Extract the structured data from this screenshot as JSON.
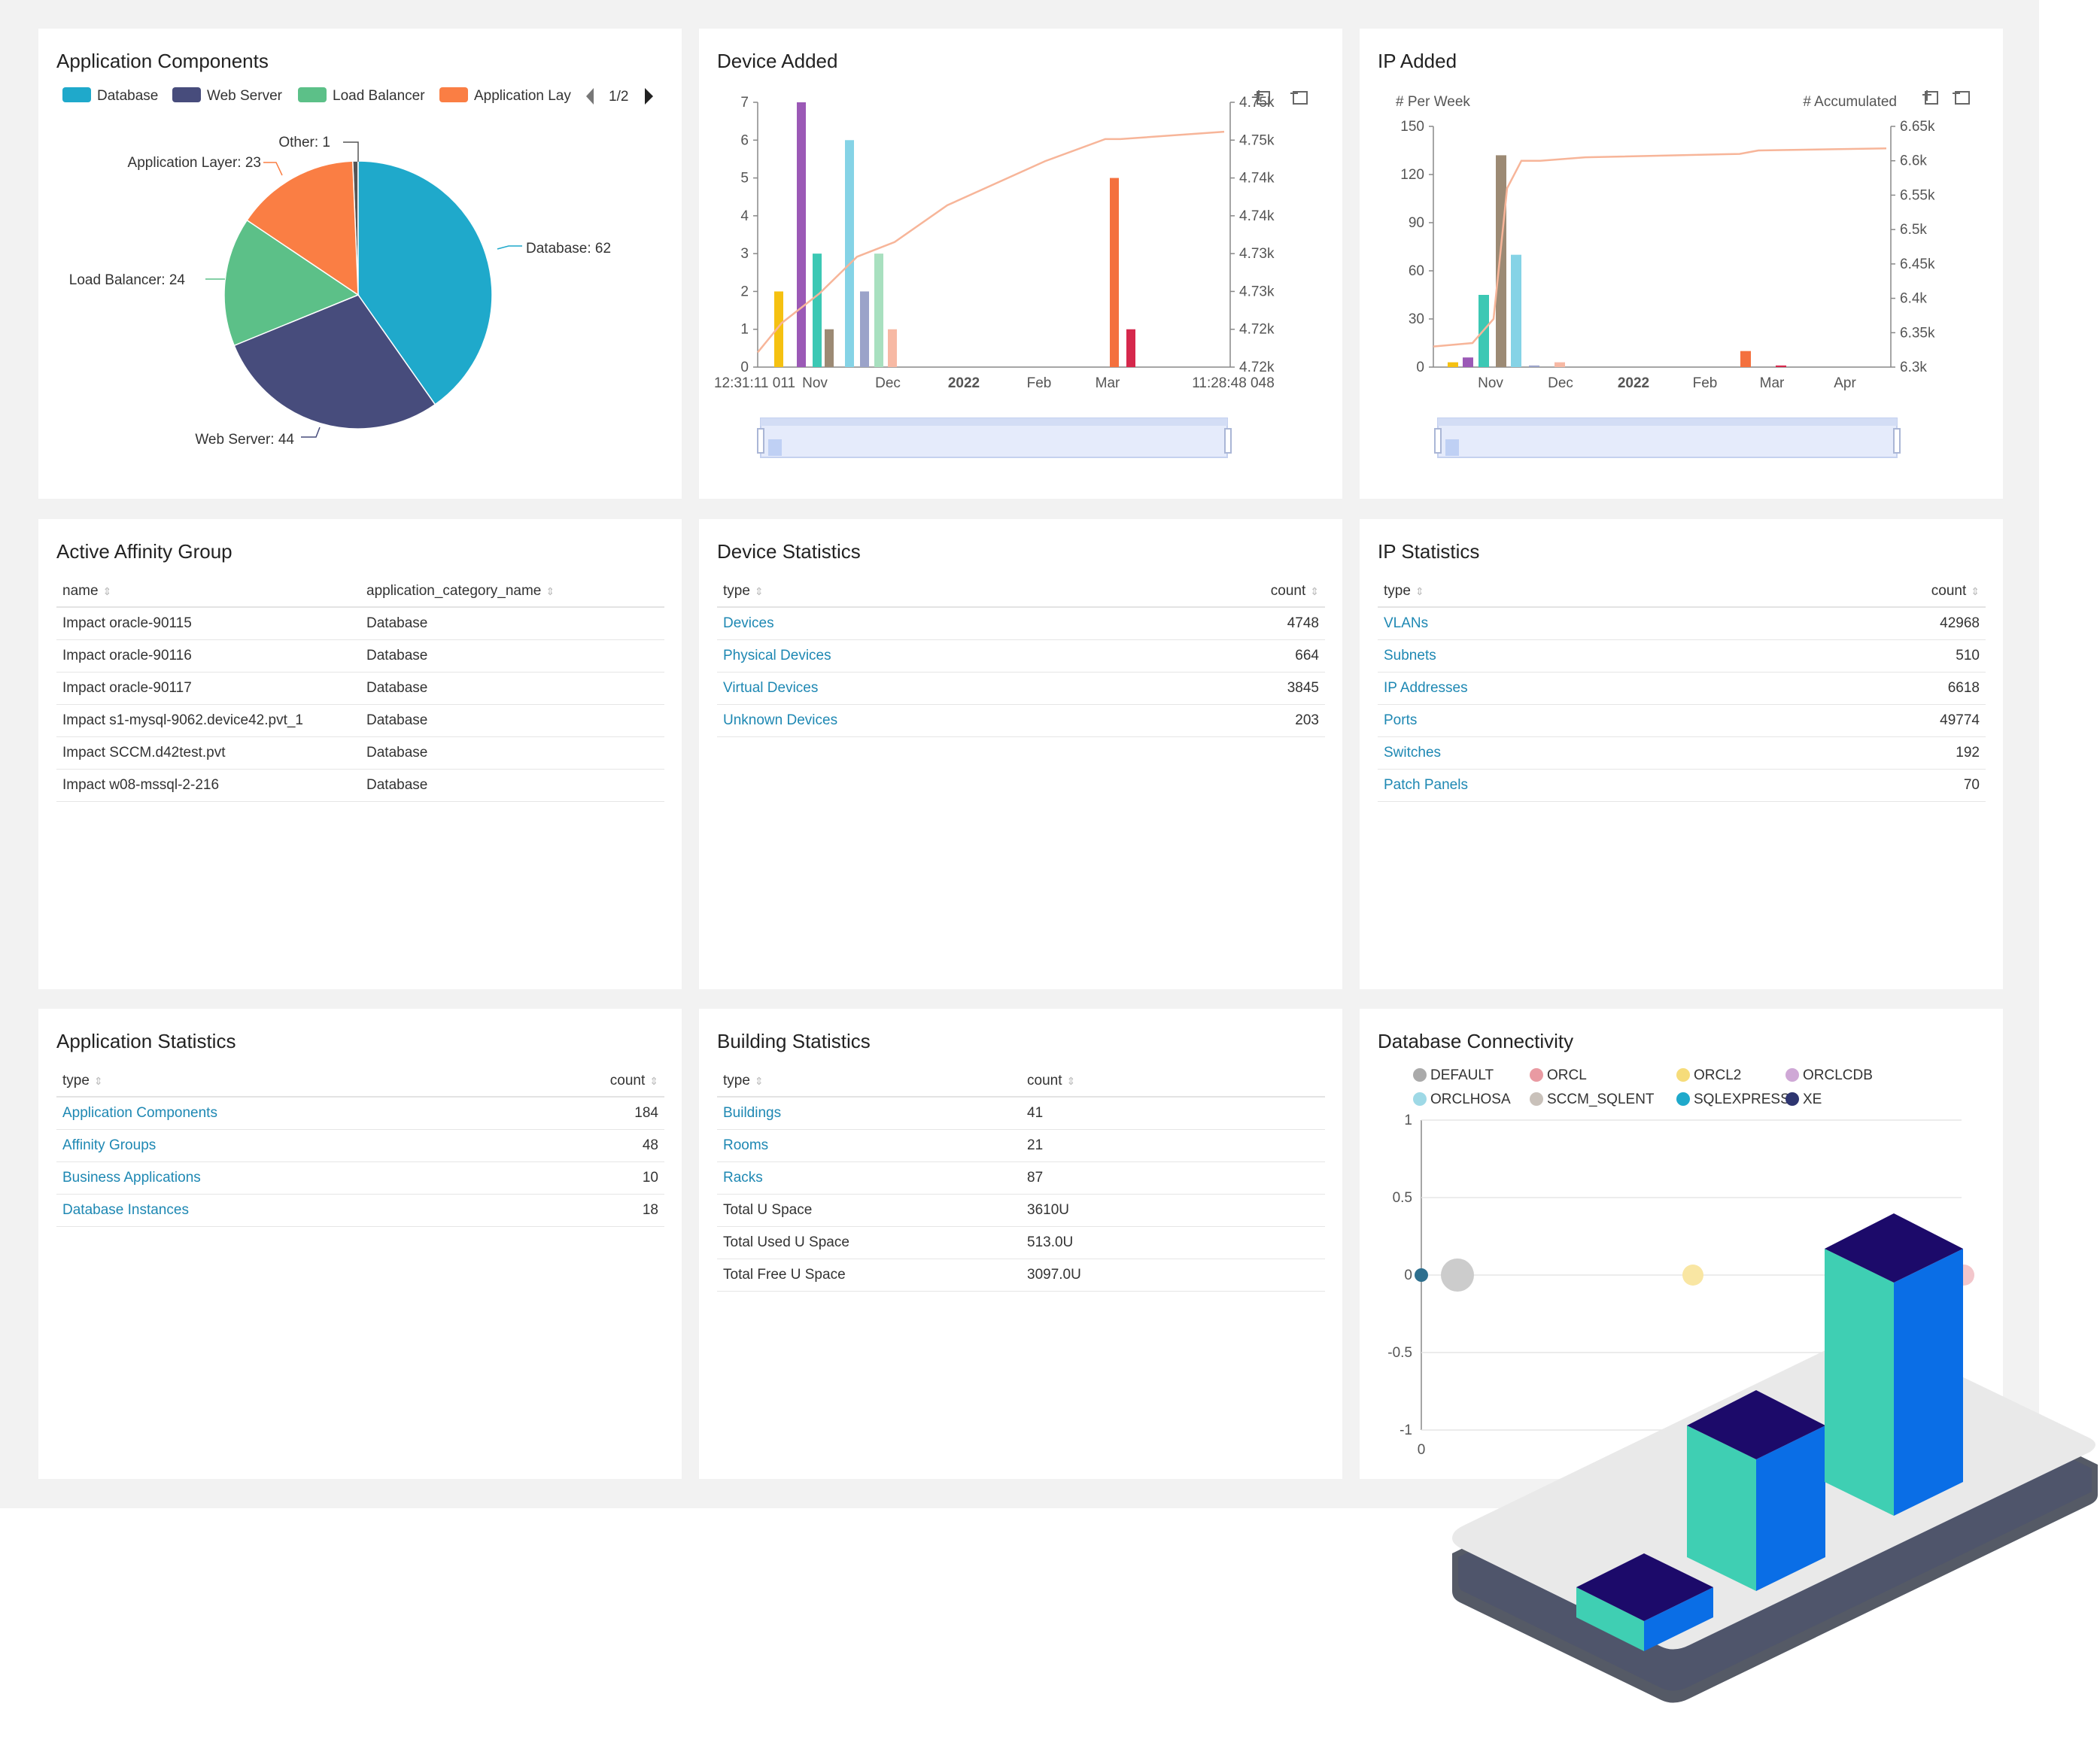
{
  "app_components": {
    "title": "Application Components",
    "legend": [
      {
        "label": "Database",
        "color": "#1fa9cb"
      },
      {
        "label": "Web Server",
        "color": "#474c7c"
      },
      {
        "label": "Load Balancer",
        "color": "#5cc088"
      },
      {
        "label": "Application Lay",
        "color": "#fa7e44"
      }
    ],
    "pager": "1/2",
    "pie_labels": [
      "Database: 62",
      "Web Server: 44",
      "Load Balancer: 24",
      "Application Layer: 23",
      "Other: 1"
    ]
  },
  "device_added": {
    "title": "Device Added",
    "x_start": "12:31:11 011",
    "x_end": "11:28:48 048",
    "x_ticks": [
      "Nov",
      "Dec",
      "2022",
      "Feb",
      "Mar"
    ],
    "y_left": [
      "0",
      "1",
      "2",
      "3",
      "4",
      "5",
      "6",
      "7"
    ],
    "y_right": [
      "4.72k",
      "4.72k",
      "4.73k",
      "4.73k",
      "4.74k",
      "4.74k",
      "4.75k",
      "4.75k"
    ]
  },
  "ip_added": {
    "title": "IP Added",
    "left_axis_name": "# Per Week",
    "right_axis_name": "# Accumulated",
    "x_ticks": [
      "Nov",
      "Dec",
      "2022",
      "Feb",
      "Mar",
      "Apr"
    ],
    "y_left": [
      "0",
      "30",
      "60",
      "90",
      "120",
      "150"
    ],
    "y_right": [
      "6.3k",
      "6.35k",
      "6.4k",
      "6.45k",
      "6.5k",
      "6.55k",
      "6.6k",
      "6.65k"
    ]
  },
  "affinity": {
    "title": "Active Affinity Group",
    "col_name": "name",
    "col_cat": "application_category_name",
    "rows": [
      {
        "name": "Impact oracle-90115",
        "cat": "Database"
      },
      {
        "name": "Impact oracle-90116",
        "cat": "Database"
      },
      {
        "name": "Impact oracle-90117",
        "cat": "Database"
      },
      {
        "name": "Impact s1-mysql-9062.device42.pvt_1",
        "cat": "Database"
      },
      {
        "name": "Impact SCCM.d42test.pvt",
        "cat": "Database"
      },
      {
        "name": "Impact w08-mssql-2-216",
        "cat": "Database"
      }
    ]
  },
  "device_stats": {
    "title": "Device Statistics",
    "col_type": "type",
    "col_count": "count",
    "rows": [
      {
        "type": "Devices",
        "count": "4748"
      },
      {
        "type": "Physical Devices",
        "count": "664"
      },
      {
        "type": "Virtual Devices",
        "count": "3845"
      },
      {
        "type": "Unknown Devices",
        "count": "203"
      }
    ]
  },
  "ip_stats": {
    "title": "IP Statistics",
    "col_type": "type",
    "col_count": "count",
    "rows": [
      {
        "type": "VLANs",
        "count": "42968"
      },
      {
        "type": "Subnets",
        "count": "510"
      },
      {
        "type": "IP Addresses",
        "count": "6618"
      },
      {
        "type": "Ports",
        "count": "49774"
      },
      {
        "type": "Switches",
        "count": "192"
      },
      {
        "type": "Patch Panels",
        "count": "70"
      }
    ]
  },
  "app_stats": {
    "title": "Application Statistics",
    "col_type": "type",
    "col_count": "count",
    "rows": [
      {
        "type": "Application Components",
        "count": "184"
      },
      {
        "type": "Affinity Groups",
        "count": "48"
      },
      {
        "type": "Business Applications",
        "count": "10"
      },
      {
        "type": "Database Instances",
        "count": "18"
      }
    ]
  },
  "building_stats": {
    "title": "Building Statistics",
    "col_type": "type",
    "col_count": "count",
    "rows": [
      {
        "type": "Buildings",
        "count": "41"
      },
      {
        "type": "Rooms",
        "count": "21"
      },
      {
        "type": "Racks",
        "count": "87"
      },
      {
        "type": "Total U Space",
        "count": "3610U"
      },
      {
        "type": "Total Used U Space",
        "count": "513.0U"
      },
      {
        "type": "Total Free U Space",
        "count": "3097.0U"
      }
    ]
  },
  "db_conn": {
    "title": "Database Connectivity",
    "legend": [
      {
        "label": "DEFAULT",
        "color": "#aaaaaa"
      },
      {
        "label": "ORCL",
        "color": "#e99aa2"
      },
      {
        "label": "ORCL2",
        "color": "#f6dc7a"
      },
      {
        "label": "ORCLCDB",
        "color": "#cfa8d6"
      },
      {
        "label": "ORCLHOSA",
        "color": "#9ed9e6"
      },
      {
        "label": "SCCM_SQLENT",
        "color": "#c9c1ba"
      },
      {
        "label": "SQLEXPRESS",
        "color": "#1fa9cb"
      },
      {
        "label": "XE",
        "color": "#2e3570"
      }
    ],
    "y_ticks": [
      "1",
      "0.5",
      "0",
      "-0.5",
      "-1"
    ],
    "x_tick": "0"
  },
  "chart_data": [
    {
      "type": "pie",
      "title": "Application Components",
      "categories": [
        "Database",
        "Web Server",
        "Load Balancer",
        "Application Layer",
        "Other"
      ],
      "values": [
        62,
        44,
        24,
        23,
        1
      ],
      "colors": [
        "#1fa9cb",
        "#474c7c",
        "#5cc088",
        "#fa7e44",
        "#555555"
      ],
      "legend_position": "top"
    },
    {
      "type": "bar",
      "title": "Device Added",
      "series": [
        {
          "kind": "bar",
          "values": [
            2,
            7,
            3,
            1,
            6,
            2,
            3,
            1,
            5,
            1
          ]
        },
        {
          "kind": "line",
          "values": [
            4718,
            4722,
            4726,
            4731,
            4733,
            4738,
            4744,
            4747,
            4747,
            4748
          ]
        }
      ],
      "bar_colors": [
        "#f5c111",
        "#9b59b6",
        "#3cc8b4",
        "#9c8a74",
        "#85d3e6",
        "#9ba3c9",
        "#a8e0bf",
        "#f7b9a4",
        "#f4703e",
        "#d6284c"
      ],
      "ylim_left": [
        0,
        7
      ]
    },
    {
      "type": "bar",
      "title": "IP Added",
      "series": [
        {
          "kind": "bar",
          "values": [
            3,
            6,
            45,
            132,
            70,
            1,
            3,
            10,
            1
          ]
        },
        {
          "kind": "line",
          "values": [
            6330,
            6335,
            6370,
            6560,
            6600,
            6600,
            6605,
            6610,
            6615,
            6618
          ]
        }
      ],
      "ylim_left": [
        0,
        150
      ],
      "ylim_right": [
        6300,
        6650
      ]
    },
    {
      "type": "scatter",
      "title": "Database Connectivity",
      "ylim": [
        -1,
        1
      ],
      "points": [
        {
          "series": "XE",
          "x": 0,
          "y": 0
        },
        {
          "series": "DEFAULT",
          "x": 0,
          "y": 0
        },
        {
          "series": "ORCL2",
          "x": 0,
          "y": 0
        }
      ]
    }
  ]
}
